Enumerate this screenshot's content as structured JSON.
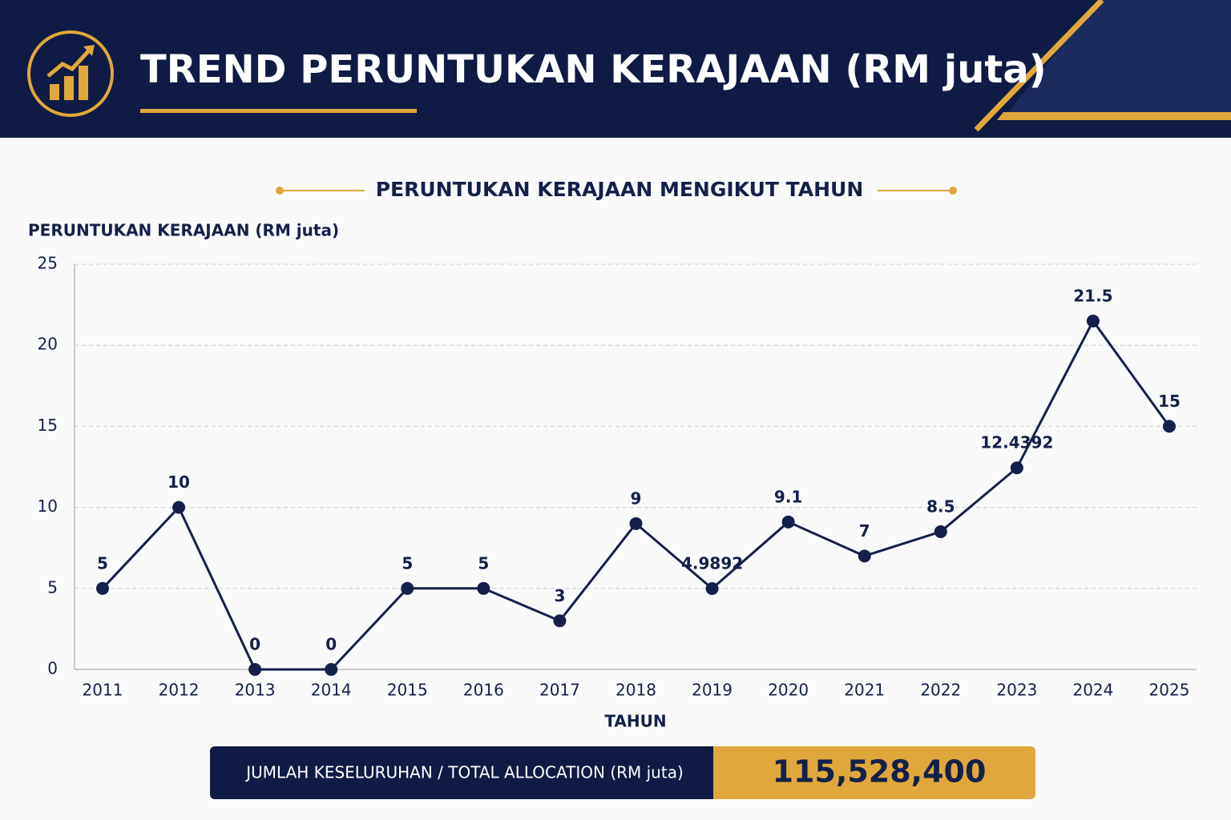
{
  "header": {
    "title": "TREND PERUNTUKAN KERAJAAN (RM juta)"
  },
  "chart_data": {
    "type": "line",
    "title": "PERUNTUKAN KERAJAAN MENGIKUT TAHUN",
    "y_label": "PERUNTUKAN KERAJAAN (RM juta)",
    "x_label": "TAHUN",
    "categories": [
      "2011",
      "2012",
      "2013",
      "2014",
      "2015",
      "2016",
      "2017",
      "2018",
      "2019",
      "2020",
      "2021",
      "2022",
      "2023",
      "2024",
      "2025"
    ],
    "values": [
      5,
      10,
      0,
      0,
      5,
      5,
      3,
      9,
      4.9892,
      9.1,
      7,
      8.5,
      12.4392,
      21.5,
      15
    ],
    "color": "#14204a",
    "ylim": [
      0,
      25
    ],
    "yticks": [
      0,
      5,
      10,
      15,
      20,
      25
    ],
    "grid": true
  },
  "total": {
    "label": "JUMLAH KESELURUHAN / TOTAL ALLOCATION (RM juta)",
    "value": "115,528,400"
  }
}
